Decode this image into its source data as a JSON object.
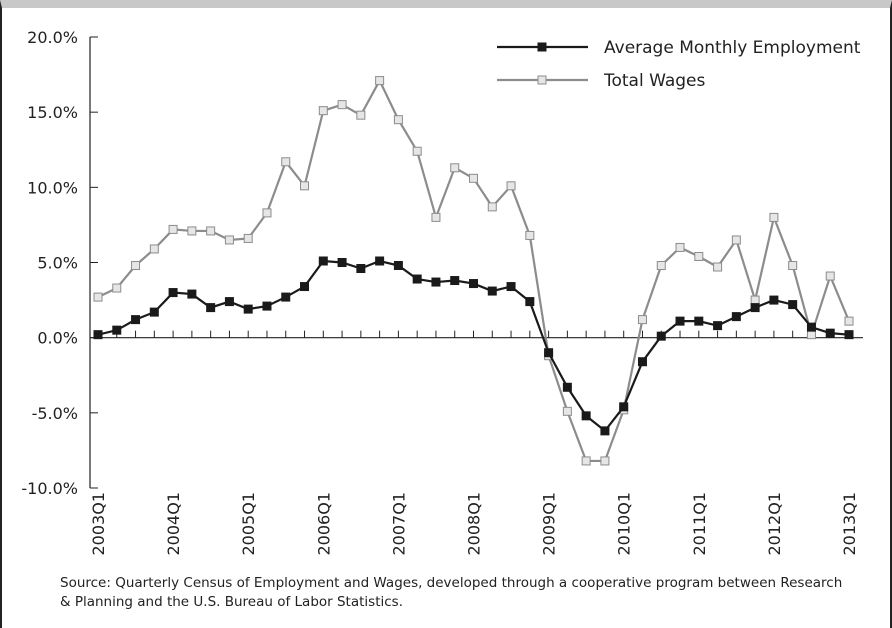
{
  "chart_data": {
    "type": "line",
    "categories": [
      "2003Q1",
      null,
      null,
      null,
      "2004Q1",
      null,
      null,
      null,
      "2005Q1",
      null,
      null,
      null,
      "2006Q1",
      null,
      null,
      null,
      "2007Q1",
      null,
      null,
      null,
      "2008Q1",
      null,
      null,
      null,
      "2009Q1",
      null,
      null,
      null,
      "2010Q1",
      null,
      null,
      null,
      "2011Q1",
      null,
      null,
      null,
      "2012Q1",
      null,
      null,
      null,
      "2013Q1"
    ],
    "series": [
      {
        "name": "Average Monthly Employment",
        "color": "#1a1a1a",
        "marker_fill": "#1a1a1a",
        "values": [
          0.2,
          0.5,
          1.2,
          1.7,
          3.0,
          2.9,
          2.0,
          2.4,
          1.9,
          2.1,
          2.7,
          3.4,
          5.1,
          5.0,
          4.6,
          5.1,
          4.8,
          3.9,
          3.7,
          3.8,
          3.6,
          3.1,
          3.4,
          2.4,
          -1.0,
          -3.3,
          -5.2,
          -6.2,
          -4.6,
          -1.6,
          0.1,
          1.1,
          1.1,
          0.8,
          1.4,
          2.0,
          2.5,
          2.2,
          0.7,
          0.3,
          0.2
        ]
      },
      {
        "name": "Total Wages",
        "color": "#8c8c8c",
        "marker_fill": "#e6e6e6",
        "values": [
          2.7,
          3.3,
          4.8,
          5.9,
          7.2,
          7.1,
          7.1,
          6.5,
          6.6,
          8.3,
          11.7,
          10.1,
          15.1,
          15.5,
          14.8,
          17.1,
          14.5,
          12.4,
          8.0,
          11.3,
          10.6,
          8.7,
          10.1,
          6.8,
          -1.2,
          -4.9,
          -8.2,
          -8.2,
          -4.8,
          1.2,
          4.8,
          6.0,
          5.4,
          4.7,
          6.5,
          2.5,
          8.0,
          4.8,
          0.2,
          4.1,
          1.1
        ]
      }
    ],
    "ylim": [
      -10,
      20
    ],
    "yticks": [
      {
        "value": -10,
        "label": "-10.0%"
      },
      {
        "value": -5,
        "label": "-5.0%"
      },
      {
        "value": 0,
        "label": "0.0%"
      },
      {
        "value": 5,
        "label": "5.0%"
      },
      {
        "value": 10,
        "label": "10.0%"
      },
      {
        "value": 15,
        "label": "15.0%"
      },
      {
        "value": 20,
        "label": "20.0%"
      }
    ],
    "legend": "top-right",
    "source": "Source: Quarterly Census of Employment and Wages, developed through a cooperative program between Research & Planning and the U.S. Bureau of Labor Statistics."
  }
}
